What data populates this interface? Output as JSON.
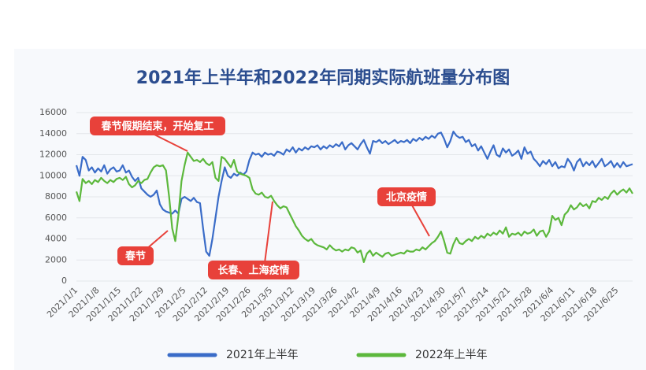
{
  "chart_data": {
    "type": "line",
    "title": "2021年上半年和2022年同期实际航班量分布图",
    "categories": [
      "2021/1/1",
      null,
      null,
      null,
      null,
      null,
      null,
      "2021/1/8",
      null,
      null,
      null,
      null,
      null,
      null,
      "2021/1/15",
      null,
      null,
      null,
      null,
      null,
      null,
      "2021/1/22",
      null,
      null,
      null,
      null,
      null,
      null,
      "2021/1/29",
      null,
      null,
      null,
      null,
      null,
      null,
      "2021/2/5",
      null,
      null,
      null,
      null,
      null,
      null,
      "2021/2/12",
      null,
      null,
      null,
      null,
      null,
      null,
      "2021/2/19",
      null,
      null,
      null,
      null,
      null,
      null,
      "2021/2/26",
      null,
      null,
      null,
      null,
      null,
      null,
      "2021/3/5",
      null,
      null,
      null,
      null,
      null,
      null,
      "2021/3/12",
      null,
      null,
      null,
      null,
      null,
      null,
      "2021/3/19",
      null,
      null,
      null,
      null,
      null,
      null,
      "2021/3/26",
      null,
      null,
      null,
      null,
      null,
      null,
      "2021/4/2",
      null,
      null,
      null,
      null,
      null,
      null,
      "2021/4/9",
      null,
      null,
      null,
      null,
      null,
      null,
      "2021/4/16",
      null,
      null,
      null,
      null,
      null,
      null,
      "2021/4/23",
      null,
      null,
      null,
      null,
      null,
      null,
      "2021/4/30",
      null,
      null,
      null,
      null,
      null,
      null,
      "2021/5/7",
      null,
      null,
      null,
      null,
      null,
      null,
      "2021/5/14",
      null,
      null,
      null,
      null,
      null,
      null,
      "2021/5/21",
      null,
      null,
      null,
      null,
      null,
      null,
      "2021/5/28",
      null,
      null,
      null,
      null,
      null,
      null,
      "2021/6/4",
      null,
      null,
      null,
      null,
      null,
      null,
      "2021/6/11",
      null,
      null,
      null,
      null,
      null,
      null,
      "2021/6/18",
      null,
      null,
      null,
      null,
      null,
      null,
      "2021/6/25",
      null,
      null,
      null,
      null,
      null
    ],
    "series": [
      {
        "name": "2021年上半年",
        "color": "#3a6cc8",
        "values": [
          11000,
          10000,
          11800,
          11500,
          10500,
          10800,
          10300,
          10700,
          10400,
          11000,
          10200,
          10600,
          10800,
          10400,
          10500,
          11000,
          10300,
          10500,
          9900,
          9500,
          9800,
          8800,
          8500,
          8200,
          8000,
          8200,
          8600,
          7300,
          6800,
          6600,
          6500,
          6400,
          6700,
          6400,
          7800,
          8000,
          7800,
          7600,
          7900,
          7500,
          7400,
          5000,
          2800,
          2400,
          4000,
          6000,
          8000,
          9500,
          10800,
          10000,
          9800,
          10200,
          10000,
          10300,
          10100,
          10400,
          11500,
          12200,
          12000,
          12100,
          11800,
          12200,
          12000,
          12100,
          11900,
          12300,
          12200,
          12000,
          12500,
          12300,
          12700,
          12200,
          12600,
          12400,
          12700,
          12500,
          12800,
          12700,
          12900,
          12500,
          12800,
          12600,
          12900,
          12700,
          13000,
          12800,
          13200,
          12500,
          12900,
          13100,
          12800,
          12500,
          13000,
          13400,
          12700,
          12100,
          13300,
          13200,
          13400,
          13100,
          13300,
          13000,
          13200,
          13400,
          13100,
          13300,
          13200,
          13400,
          13100,
          13500,
          13300,
          13600,
          13400,
          13700,
          13500,
          13800,
          13600,
          14000,
          14100,
          13500,
          12700,
          13300,
          14200,
          13800,
          13600,
          13700,
          13200,
          13400,
          12800,
          13000,
          12400,
          12800,
          12200,
          11600,
          12300,
          12900,
          12000,
          11800,
          12600,
          12200,
          12500,
          11900,
          12100,
          12400,
          11600,
          12700,
          12100,
          12300,
          11600,
          11300,
          10900,
          11400,
          11100,
          11500,
          10900,
          11300,
          10700,
          10900,
          10800,
          11600,
          11200,
          10500,
          11300,
          11600,
          10900,
          11300,
          11000,
          11400,
          10800,
          11200,
          11600,
          10900,
          11100,
          11400,
          10800,
          11200,
          10800,
          11300,
          10900,
          11000,
          11100
        ]
      },
      {
        "name": "2022年上半年",
        "color": "#5cb83c",
        "values": [
          8500,
          7600,
          9700,
          9300,
          9500,
          9200,
          9600,
          9400,
          9800,
          9500,
          9300,
          9600,
          9400,
          9700,
          9800,
          9600,
          9900,
          9200,
          8900,
          9100,
          9500,
          9300,
          9600,
          9700,
          10300,
          10800,
          11000,
          10900,
          11000,
          10500,
          8000,
          5000,
          3800,
          6200,
          9500,
          11000,
          12200,
          11800,
          11400,
          11500,
          11300,
          11600,
          11200,
          11000,
          11300,
          9800,
          9500,
          11800,
          11600,
          11200,
          10800,
          11500,
          10400,
          10200,
          10100,
          10000,
          9800,
          8700,
          8300,
          8200,
          8400,
          8000,
          7900,
          8100,
          7600,
          7200,
          6900,
          7100,
          7000,
          6400,
          5800,
          5200,
          4800,
          4300,
          4000,
          3800,
          4000,
          3600,
          3400,
          3300,
          3200,
          3000,
          3400,
          3100,
          2900,
          3000,
          2800,
          3000,
          2900,
          3200,
          3100,
          2700,
          2900,
          1800,
          2600,
          2900,
          2400,
          2700,
          2500,
          2300,
          2600,
          2700,
          2400,
          2500,
          2600,
          2700,
          2600,
          2900,
          2800,
          2800,
          3000,
          2900,
          3200,
          3000,
          3300,
          3600,
          3800,
          4200,
          4700,
          3800,
          2700,
          2600,
          3500,
          4100,
          3600,
          3500,
          3800,
          4000,
          3800,
          4200,
          4000,
          4300,
          4100,
          4500,
          4300,
          4600,
          4400,
          4800,
          4500,
          5100,
          4200,
          4500,
          4400,
          4600,
          4300,
          4700,
          4500,
          4600,
          4900,
          4300,
          4700,
          4800,
          4200,
          4700,
          6200,
          5800,
          6000,
          5300,
          6300,
          6600,
          7200,
          6800,
          7000,
          7400,
          7100,
          7300,
          6900,
          7600,
          7500,
          7900,
          7700,
          8000,
          7800,
          8300,
          8600,
          8200,
          8500,
          8700,
          8400,
          8800,
          8300
        ]
      }
    ],
    "ylim": [
      0,
      16000
    ],
    "yticks": [
      0,
      2000,
      4000,
      6000,
      8000,
      10000,
      12000,
      14000,
      16000
    ],
    "grid": true,
    "annotations": [
      {
        "text": "春节假期结束，开始复工"
      },
      {
        "text": "春节"
      },
      {
        "text": "长春、上海疫情"
      },
      {
        "text": "北京疫情"
      }
    ]
  }
}
